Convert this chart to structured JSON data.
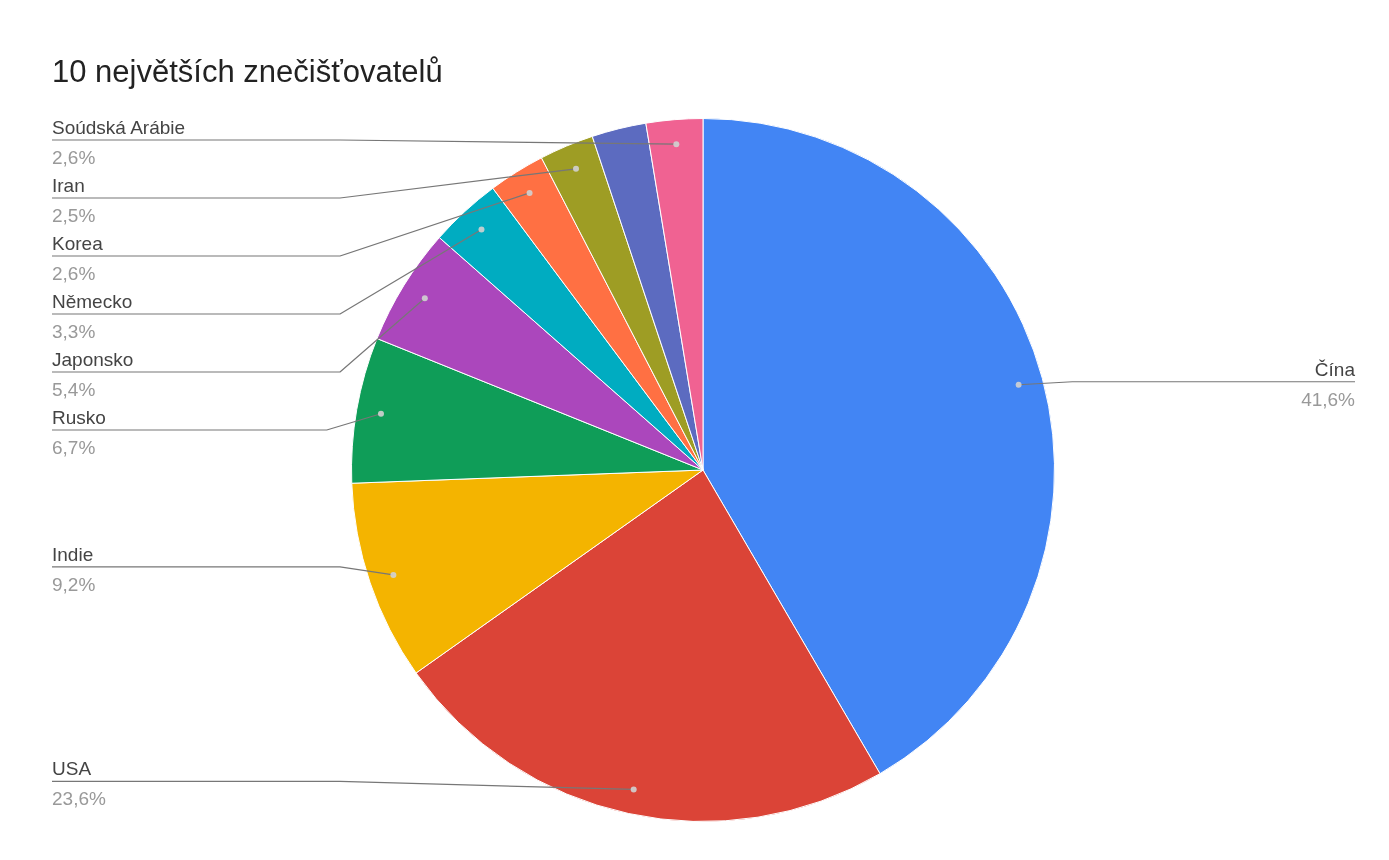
{
  "chart_data": {
    "type": "pie",
    "title": "10 největších znečišťovatelů",
    "categories": [
      "Čína",
      "USA",
      "Indie",
      "Rusko",
      "Japonsko",
      "Německo",
      "Korea",
      "Iran",
      null,
      "Soúdská Arábie"
    ],
    "values": [
      41.6,
      23.6,
      9.2,
      6.7,
      5.4,
      3.3,
      2.6,
      2.5,
      2.5,
      2.6
    ],
    "value_labels": [
      "41,6%",
      "23,6%",
      "9,2%",
      "6,7%",
      "5,4%",
      "3,3%",
      "2,6%",
      "2,5%",
      null,
      "2,6%"
    ],
    "colors": [
      "#4285f4",
      "#db4437",
      "#f4b400",
      "#0f9d58",
      "#ab47bc",
      "#00acc1",
      "#ff7043",
      "#9e9d24",
      "#5c6bc0",
      "#f06292"
    ],
    "legend": false
  }
}
